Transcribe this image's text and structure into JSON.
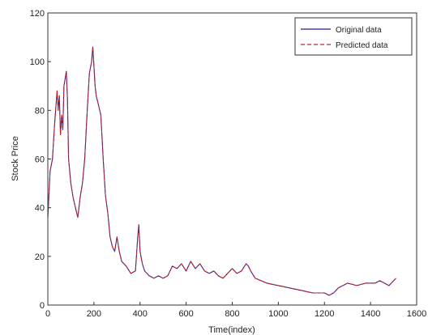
{
  "chart_data": {
    "type": "line",
    "title": "",
    "xlabel": "Time(index)",
    "ylabel": "Stock Price",
    "xlim": [
      0,
      1600
    ],
    "ylim": [
      0,
      120
    ],
    "xticks": [
      0,
      200,
      400,
      600,
      800,
      1000,
      1200,
      1400,
      1600
    ],
    "yticks": [
      0,
      20,
      40,
      60,
      80,
      100,
      120
    ],
    "grid": false,
    "legend_position": "top-right",
    "series": [
      {
        "name": "Original data",
        "color": "#1f1f9f",
        "style": "solid",
        "x": [
          0,
          10,
          20,
          30,
          40,
          45,
          50,
          55,
          60,
          65,
          70,
          80,
          85,
          90,
          100,
          110,
          120,
          130,
          140,
          150,
          160,
          170,
          180,
          190,
          195,
          200,
          205,
          210,
          220,
          230,
          240,
          250,
          260,
          270,
          280,
          290,
          300,
          310,
          320,
          340,
          360,
          380,
          390,
          395,
          400,
          410,
          420,
          440,
          460,
          480,
          500,
          520,
          540,
          560,
          580,
          600,
          620,
          640,
          660,
          680,
          700,
          720,
          740,
          760,
          780,
          800,
          820,
          840,
          860,
          870,
          880,
          900,
          950,
          1000,
          1050,
          1100,
          1150,
          1200,
          1220,
          1240,
          1260,
          1280,
          1300,
          1340,
          1380,
          1420,
          1440,
          1460,
          1480,
          1500,
          1510
        ],
        "y": [
          36,
          55,
          60,
          75,
          88,
          80,
          86,
          70,
          78,
          72,
          90,
          96,
          85,
          60,
          50,
          44,
          40,
          36,
          44,
          50,
          60,
          78,
          95,
          100,
          106,
          98,
          90,
          86,
          82,
          78,
          60,
          45,
          38,
          28,
          24,
          22,
          28,
          22,
          18,
          16,
          13,
          14,
          28,
          33,
          22,
          17,
          14,
          12,
          11,
          12,
          11,
          12,
          16,
          15,
          17,
          14,
          18,
          15,
          17,
          14,
          13,
          14,
          12,
          11,
          13,
          15,
          13,
          14,
          17,
          16,
          14,
          11,
          9,
          8,
          7,
          6,
          5,
          5,
          4,
          5,
          7,
          8,
          9,
          8,
          9,
          9,
          10,
          9,
          8,
          10,
          11
        ]
      },
      {
        "name": "Predicted data",
        "color": "#d02020",
        "style": "dashed",
        "x": [
          0,
          10,
          20,
          30,
          40,
          45,
          50,
          55,
          60,
          65,
          70,
          80,
          85,
          90,
          100,
          110,
          120,
          130,
          140,
          150,
          160,
          170,
          180,
          190,
          195,
          200,
          205,
          210,
          220,
          230,
          240,
          250,
          260,
          270,
          280,
          290,
          300,
          310,
          320,
          340,
          360,
          380,
          390,
          395,
          400,
          410,
          420,
          440,
          460,
          480,
          500,
          520,
          540,
          560,
          580,
          600,
          620,
          640,
          660,
          680,
          700,
          720,
          740,
          760,
          780,
          800,
          820,
          840,
          860,
          870,
          880,
          900,
          950,
          1000,
          1050,
          1100,
          1150,
          1200,
          1220,
          1240,
          1260,
          1280,
          1300,
          1340,
          1380,
          1420,
          1440,
          1460,
          1480,
          1500,
          1510
        ],
        "y": [
          36,
          55,
          60,
          75,
          88,
          80,
          86,
          70,
          78,
          72,
          90,
          96,
          85,
          60,
          50,
          44,
          40,
          36,
          44,
          50,
          60,
          78,
          95,
          100,
          106,
          98,
          90,
          86,
          82,
          78,
          60,
          45,
          38,
          28,
          24,
          22,
          28,
          22,
          18,
          16,
          13,
          14,
          28,
          33,
          22,
          17,
          14,
          12,
          11,
          12,
          11,
          12,
          16,
          15,
          17,
          14,
          18,
          15,
          17,
          14,
          13,
          14,
          12,
          11,
          13,
          15,
          13,
          14,
          17,
          16,
          14,
          11,
          9,
          8,
          7,
          6,
          5,
          5,
          4,
          5,
          7,
          8,
          9,
          8,
          9,
          9,
          10,
          9,
          8,
          10,
          11
        ]
      }
    ]
  }
}
